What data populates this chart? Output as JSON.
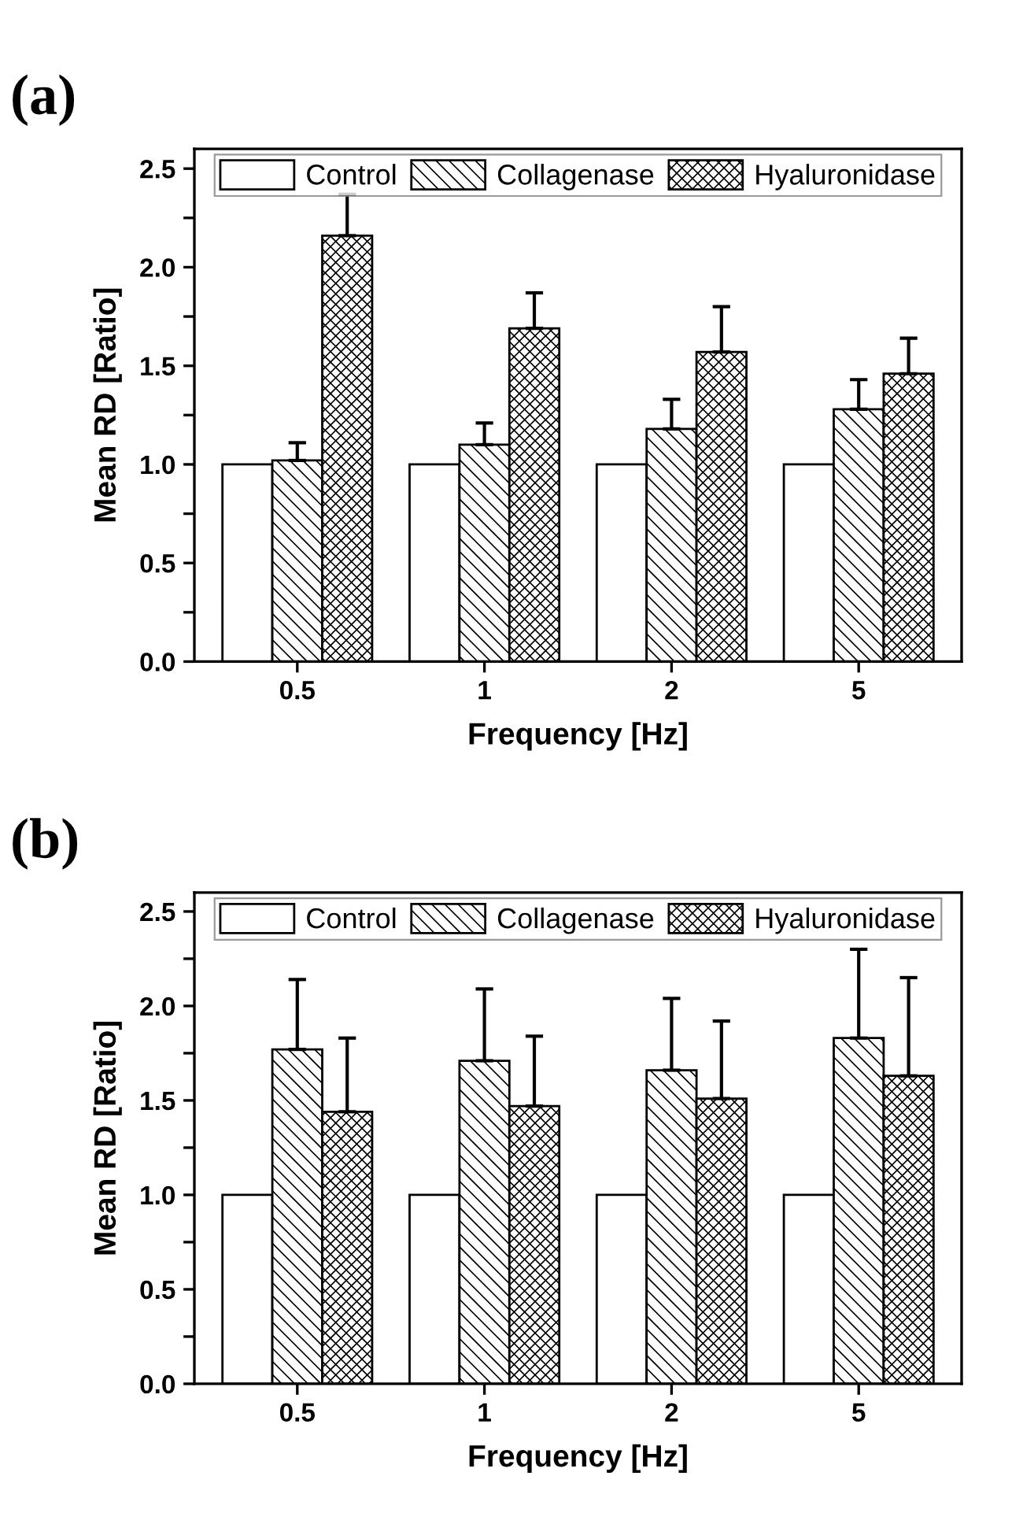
{
  "chart_data": [
    {
      "type": "bar",
      "title": "(a)",
      "xlabel": "Frequency [Hz]",
      "ylabel": "Mean RD [Ratio]",
      "categories": [
        "0.5",
        "1",
        "2",
        "5"
      ],
      "series": [
        {
          "name": "Control",
          "color": "#ffffff",
          "values": [
            1.0,
            1.0,
            1.0,
            1.0
          ]
        },
        {
          "name": "Collagenase",
          "color": "#000000",
          "values": [
            1.02,
            1.1,
            1.18,
            1.28
          ],
          "errors": [
            [
              1.02,
              1.11
            ],
            [
              1.1,
              1.21
            ],
            [
              1.18,
              1.33
            ],
            [
              1.28,
              1.43
            ]
          ]
        },
        {
          "name": "Hyaluronidase",
          "color": "#000000",
          "values": [
            2.16,
            1.69,
            1.57,
            1.46
          ],
          "errors": [
            [
              2.16,
              2.37
            ],
            [
              1.69,
              1.87
            ],
            [
              1.57,
              1.8
            ],
            [
              1.46,
              1.64
            ]
          ]
        }
      ],
      "ylim": [
        0,
        2.6
      ],
      "yticks": [
        {
          "value": 0,
          "label": "0.0"
        },
        {
          "value": 0.25,
          "label": null
        },
        {
          "value": 0.5,
          "label": "0.5"
        },
        {
          "value": 0.75,
          "label": null
        },
        {
          "value": 1.0,
          "label": "1.0"
        },
        {
          "value": 1.25,
          "label": null
        },
        {
          "value": 1.5,
          "label": "1.5"
        },
        {
          "value": 1.75,
          "label": null
        },
        {
          "value": 2.0,
          "label": "2.0"
        },
        {
          "value": 2.25,
          "label": null
        },
        {
          "value": 2.5,
          "label": "2.5"
        }
      ],
      "legend": "top",
      "grid": false
    },
    {
      "type": "bar",
      "title": "(b)",
      "xlabel": "Frequency [Hz]",
      "ylabel": "Mean RD [Ratio]",
      "categories": [
        "0.5",
        "1",
        "2",
        "5"
      ],
      "series": [
        {
          "name": "Control",
          "color": "#ffffff",
          "values": [
            1.0,
            1.0,
            1.0,
            1.0
          ]
        },
        {
          "name": "Collagenase",
          "color": "#000000",
          "values": [
            1.77,
            1.71,
            1.66,
            1.83
          ],
          "errors": [
            [
              1.77,
              2.14
            ],
            [
              1.71,
              2.09
            ],
            [
              1.66,
              2.04
            ],
            [
              1.83,
              2.3
            ]
          ]
        },
        {
          "name": "Hyaluronidase",
          "color": "#000000",
          "values": [
            1.44,
            1.47,
            1.51,
            1.63
          ],
          "errors": [
            [
              1.44,
              1.83
            ],
            [
              1.47,
              1.84
            ],
            [
              1.51,
              1.92
            ],
            [
              1.63,
              2.15
            ]
          ]
        }
      ],
      "ylim": [
        0,
        2.6
      ],
      "yticks": [
        {
          "value": 0,
          "label": "0.0"
        },
        {
          "value": 0.25,
          "label": null
        },
        {
          "value": 0.5,
          "label": "0.5"
        },
        {
          "value": 0.75,
          "label": null
        },
        {
          "value": 1.0,
          "label": "1.0"
        },
        {
          "value": 1.25,
          "label": null
        },
        {
          "value": 1.5,
          "label": "1.5"
        },
        {
          "value": 1.75,
          "label": null
        },
        {
          "value": 2.0,
          "label": "2.0"
        },
        {
          "value": 2.25,
          "label": null
        },
        {
          "value": 2.5,
          "label": "2.5"
        }
      ],
      "legend": "top",
      "grid": false
    }
  ]
}
